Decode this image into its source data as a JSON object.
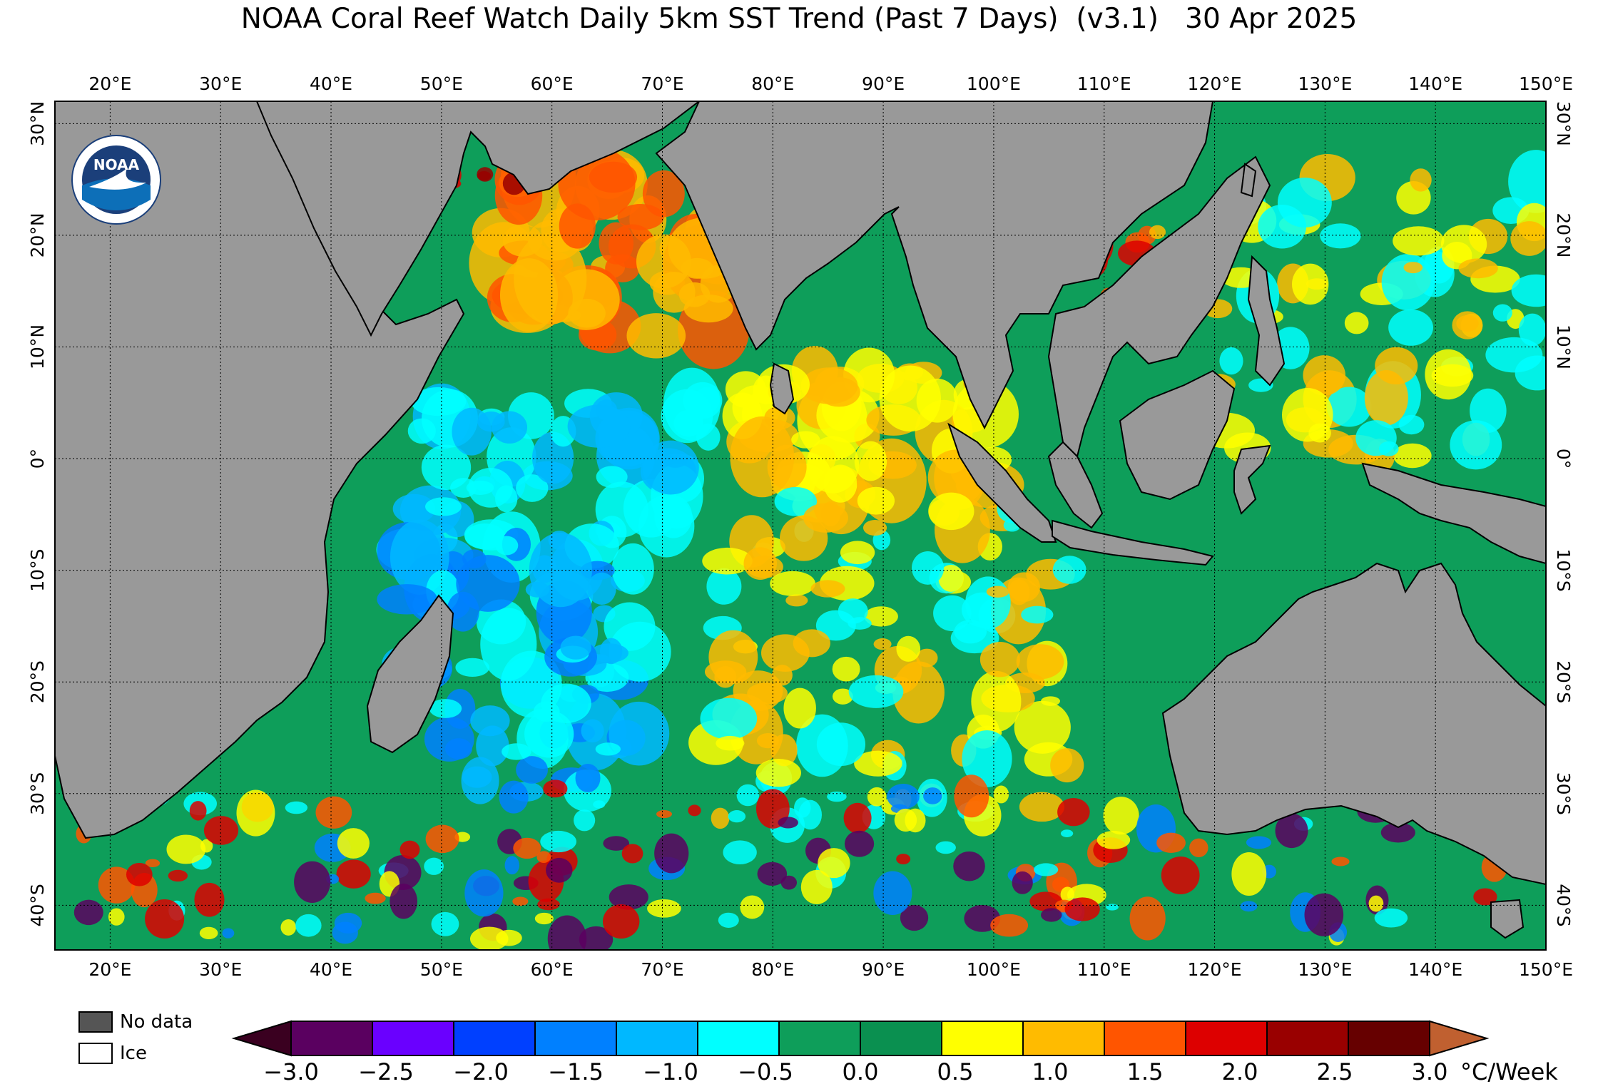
{
  "title": "NOAA Coral Reef Watch Daily 5km SST Trend (Past 7 Days)  (v3.1)   30 Apr 2025",
  "map": {
    "lon_min": 15,
    "lon_max": 150,
    "lat_min": -44,
    "lat_max": 32,
    "lon_ticks": [
      {
        "value": 20,
        "label": "20°E"
      },
      {
        "value": 30,
        "label": "30°E"
      },
      {
        "value": 40,
        "label": "40°E"
      },
      {
        "value": 50,
        "label": "50°E"
      },
      {
        "value": 60,
        "label": "60°E"
      },
      {
        "value": 70,
        "label": "70°E"
      },
      {
        "value": 80,
        "label": "80°E"
      },
      {
        "value": 90,
        "label": "90°E"
      },
      {
        "value": 100,
        "label": "100°E"
      },
      {
        "value": 110,
        "label": "110°E"
      },
      {
        "value": 120,
        "label": "120°E"
      },
      {
        "value": 130,
        "label": "130°E"
      },
      {
        "value": 140,
        "label": "140°E"
      },
      {
        "value": 150,
        "label": "150°E"
      }
    ],
    "lat_ticks": [
      {
        "value": 30,
        "label": "30°N"
      },
      {
        "value": 20,
        "label": "20°N"
      },
      {
        "value": 10,
        "label": "10°N"
      },
      {
        "value": 0,
        "label": "0°"
      },
      {
        "value": -10,
        "label": "10°S"
      },
      {
        "value": -20,
        "label": "20°S"
      },
      {
        "value": -30,
        "label": "30°S"
      },
      {
        "value": -40,
        "label": "40°S"
      }
    ],
    "land_color": "#999999",
    "ocean_base_color": "#0e9e5a"
  },
  "legend": {
    "no_data_label": "No data",
    "no_data_color": "#555555",
    "ice_label": "Ice",
    "ice_color": "#ffffff",
    "unit": "°C/Week",
    "tick_labels": [
      "−3.0",
      "−2.5",
      "−2.0",
      "−1.5",
      "−1.0",
      "−0.5",
      "0.0",
      "0.5",
      "1.0",
      "1.5",
      "2.0",
      "2.5",
      "3.0"
    ],
    "colors": [
      "#3a0020",
      "#5a0060",
      "#6a00ff",
      "#0040ff",
      "#0080ff",
      "#00b8ff",
      "#00ffff",
      "#0e9e5a",
      "#0a9050",
      "#ffff00",
      "#ffbb00",
      "#ff5500",
      "#dd0000",
      "#990000",
      "#660000",
      "#c06030"
    ]
  },
  "logo": {
    "text": "NOAA"
  }
}
